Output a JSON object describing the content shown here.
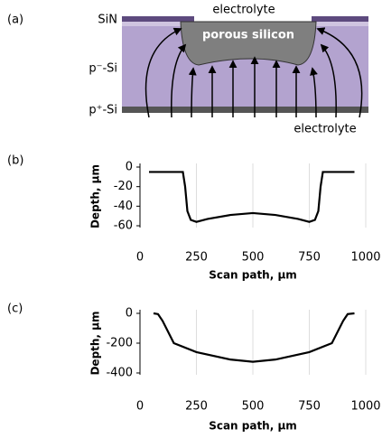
{
  "diagram": {
    "panel_label": "(a)",
    "top_label": "electrolyte",
    "region_label": "porous silicon",
    "layer_sin": "SiN",
    "layer_p_minus": "p⁻-Si",
    "layer_p_plus": "p⁺-Si",
    "bottom_label": "electrolyte"
  },
  "chart_data": [
    {
      "type": "line",
      "panel_label": "(b)",
      "x_label": "Scan path, µm",
      "y_label": "Depth, µm",
      "color": "#000000",
      "x": [
        40,
        190,
        200,
        210,
        225,
        250,
        300,
        400,
        500,
        600,
        700,
        750,
        775,
        790,
        800,
        810,
        950
      ],
      "values": [
        -5,
        -5,
        -20,
        -45,
        -54,
        -56,
        -53,
        -49,
        -47,
        -49,
        -53,
        -56,
        -54,
        -45,
        -20,
        -5,
        -5
      ],
      "xlim": [
        0,
        1000
      ],
      "xticks": [
        0,
        250,
        500,
        750,
        1000
      ],
      "ylim": [
        -60,
        0
      ],
      "yticks": [
        0,
        -20,
        -40,
        -60
      ],
      "grid": true
    },
    {
      "type": "line",
      "panel_label": "(c)",
      "x_label": "Scan path, µm",
      "y_label": "Depth, µm",
      "color": "#000000",
      "x": [
        60,
        80,
        100,
        150,
        250,
        400,
        500,
        600,
        750,
        850,
        900,
        920,
        950
      ],
      "values": [
        0,
        -5,
        -50,
        -200,
        -260,
        -310,
        -325,
        -310,
        -260,
        -200,
        -50,
        -5,
        0
      ],
      "xlim": [
        0,
        1000
      ],
      "xticks": [
        0,
        250,
        500,
        750,
        1000
      ],
      "ylim": [
        -400,
        0
      ],
      "yticks": [
        0,
        -200,
        -400
      ],
      "grid": true
    }
  ]
}
